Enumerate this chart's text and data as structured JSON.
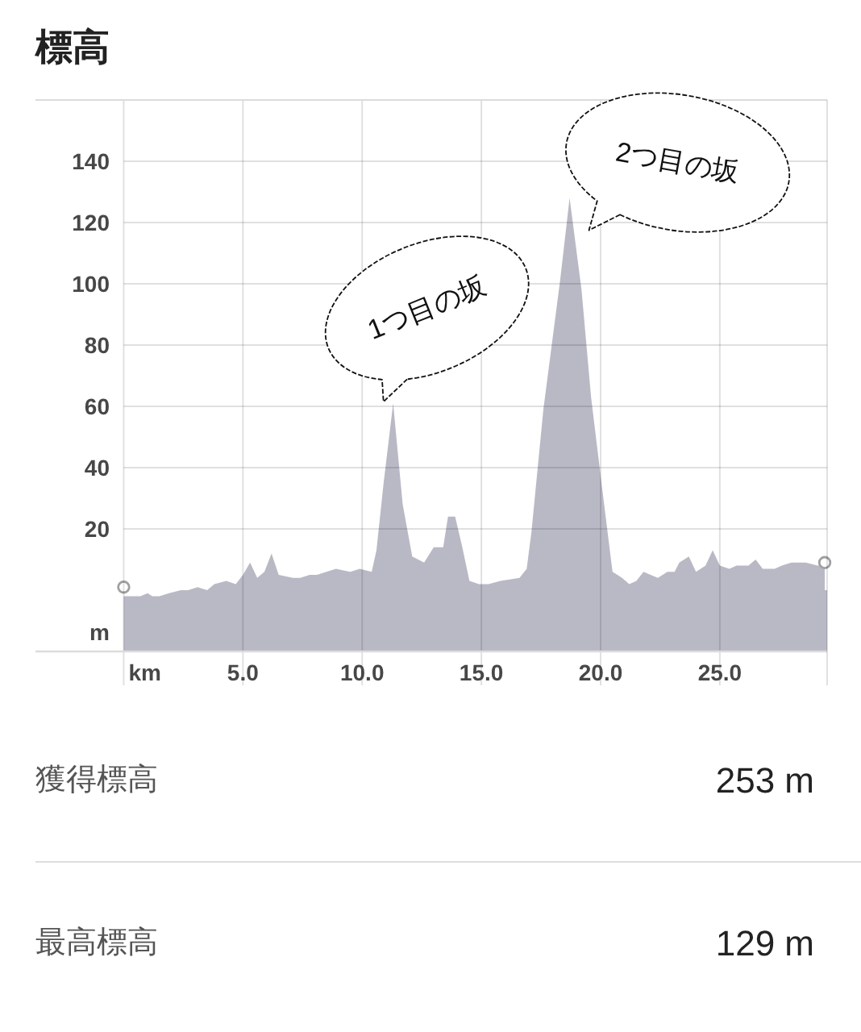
{
  "chart_data": [
    {
      "type": "area",
      "title": "標高",
      "xlabel": "km",
      "ylabel": "m",
      "xlim": [
        -3.7,
        29.5
      ],
      "ylim": [
        -20,
        160
      ],
      "xticks": [
        {
          "value": 0,
          "label": null
        },
        {
          "value": 5,
          "label": "5.0"
        },
        {
          "value": 10,
          "label": "10.0"
        },
        {
          "value": 15,
          "label": "15.0"
        },
        {
          "value": 20,
          "label": "20.0"
        },
        {
          "value": 25,
          "label": "25.0"
        }
      ],
      "yticks": [
        20,
        40,
        60,
        80,
        100,
        120,
        140
      ],
      "grid": true,
      "bands": [
        {
          "axis": "y",
          "from": -20,
          "to": 0,
          "color": "#b9b9c6"
        }
      ],
      "series": [
        {
          "color": "#b9b9c6",
          "x": [
            0,
            0.3,
            0.7,
            1,
            1.2,
            1.5,
            1.9,
            2.4,
            2.7,
            3.1,
            3.5,
            3.8,
            4.3,
            4.7,
            5,
            5.3,
            5.6,
            5.9,
            6.2,
            6.5,
            7.1,
            7.4,
            7.8,
            8.1,
            8.5,
            8.9,
            9.5,
            9.9,
            10.4,
            10.6,
            10.9,
            11.3,
            11.7,
            12.1,
            12.6,
            13,
            13.4,
            13.6,
            13.9,
            14.2,
            14.5,
            14.9,
            15.3,
            15.8,
            16.6,
            16.9,
            17.1,
            17.6,
            18.3,
            18.7,
            19.2,
            19.6,
            20.1,
            20.5,
            20.9,
            21.2,
            21.5,
            21.8,
            22.1,
            22.4,
            22.8,
            23.1,
            23.3,
            23.7,
            24,
            24.4,
            24.7,
            25,
            25.4,
            25.7,
            26.2,
            26.5,
            26.8,
            27.3,
            27.6,
            28,
            28.6,
            29.1,
            29.4
          ],
          "values": [
            -2,
            -2,
            -2,
            -1,
            -2,
            -2,
            -1,
            0,
            0,
            1,
            0,
            2,
            3,
            2,
            5,
            9,
            4,
            6,
            12,
            5,
            4,
            4,
            5,
            5,
            6,
            7,
            6,
            7,
            6,
            13,
            35,
            61,
            28,
            11,
            9,
            14,
            14,
            24,
            24,
            14,
            3,
            2,
            2,
            3,
            4,
            7,
            19,
            59,
            101,
            128,
            98,
            63,
            31,
            6,
            4,
            2,
            3,
            6,
            5,
            4,
            6,
            6,
            9,
            11,
            6,
            8,
            13,
            8,
            7,
            8,
            8,
            10,
            7,
            7,
            8,
            9,
            9,
            8,
            8
          ]
        },
        {
          "type": "scatter",
          "marker": "circle",
          "color": "#a0a0a0",
          "x": [
            0,
            29.4
          ],
          "values": [
            1,
            9
          ]
        }
      ],
      "annotations": [
        {
          "text": "1つ目の坂",
          "x": 11.3,
          "y": 61
        },
        {
          "text": "2つ目の坂",
          "x": 18.7,
          "y": 128
        }
      ]
    },
    {
      "type": "other",
      "annotations": [
        "獲得標高",
        "253 m",
        "最高標高",
        "129 m"
      ]
    }
  ]
}
